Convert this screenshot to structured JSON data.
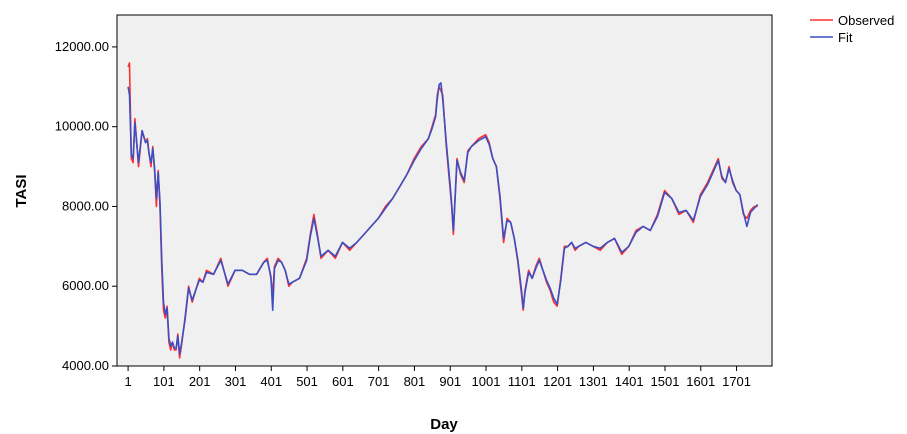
{
  "chart_data": {
    "type": "line",
    "xlabel": "Day",
    "ylabel": "TASI",
    "xlim": [
      -30,
      1800
    ],
    "ylim": [
      4000,
      12800
    ],
    "grid": false,
    "legend_position": "top-right (outside plot)",
    "x_ticks": [
      1,
      101,
      201,
      301,
      401,
      501,
      601,
      701,
      801,
      901,
      1001,
      1101,
      1201,
      1301,
      1401,
      1501,
      1601,
      1701
    ],
    "x_tick_labels": [
      "1",
      "101",
      "201",
      "301",
      "401",
      "501",
      "601",
      "701",
      "801",
      "901",
      "1001",
      "1101",
      "1201",
      "1301",
      "1401",
      "1501",
      "1601",
      "1701"
    ],
    "y_ticks": [
      4000,
      6000,
      8000,
      10000,
      12000
    ],
    "y_tick_labels": [
      "4000.00",
      "6000.00",
      "8000.00",
      "10000.00",
      "12000.00"
    ],
    "series": [
      {
        "name": "Observed",
        "color": "#ff3030",
        "x": [
          1,
          5,
          10,
          15,
          20,
          30,
          40,
          50,
          55,
          60,
          65,
          70,
          75,
          80,
          85,
          90,
          95,
          100,
          105,
          110,
          115,
          120,
          125,
          130,
          135,
          140,
          145,
          150,
          160,
          170,
          180,
          190,
          200,
          210,
          220,
          240,
          260,
          280,
          300,
          320,
          340,
          360,
          380,
          390,
          400,
          405,
          410,
          420,
          430,
          440,
          450,
          460,
          480,
          500,
          510,
          520,
          530,
          540,
          560,
          580,
          600,
          620,
          640,
          660,
          680,
          700,
          720,
          740,
          760,
          780,
          800,
          820,
          840,
          850,
          860,
          865,
          870,
          875,
          880,
          890,
          900,
          905,
          910,
          915,
          920,
          930,
          940,
          950,
          960,
          980,
          1000,
          1010,
          1020,
          1030,
          1040,
          1050,
          1060,
          1070,
          1080,
          1090,
          1100,
          1105,
          1110,
          1120,
          1130,
          1140,
          1150,
          1160,
          1170,
          1180,
          1190,
          1200,
          1210,
          1220,
          1230,
          1240,
          1250,
          1260,
          1280,
          1300,
          1320,
          1340,
          1360,
          1380,
          1400,
          1420,
          1440,
          1460,
          1480,
          1500,
          1520,
          1540,
          1560,
          1580,
          1600,
          1620,
          1640,
          1650,
          1660,
          1670,
          1680,
          1690,
          1700,
          1710,
          1720,
          1730,
          1740,
          1750,
          1760
        ],
        "y": [
          11500,
          11600,
          9200,
          9100,
          10200,
          9000,
          9900,
          9600,
          9700,
          9300,
          9000,
          9500,
          8900,
          8000,
          8900,
          8000,
          6500,
          5400,
          5200,
          5500,
          4600,
          4400,
          4600,
          4400,
          4400,
          4800,
          4200,
          4500,
          5200,
          6000,
          5600,
          5900,
          6200,
          6100,
          6400,
          6300,
          6700,
          6000,
          6400,
          6400,
          6300,
          6300,
          6600,
          6700,
          6200,
          5800,
          6500,
          6700,
          6600,
          6400,
          6000,
          6100,
          6200,
          6700,
          7300,
          7800,
          7300,
          6700,
          6900,
          6700,
          7100,
          6900,
          7100,
          7300,
          7500,
          7700,
          8000,
          8200,
          8500,
          8800,
          9200,
          9500,
          9700,
          10000,
          10300,
          10800,
          11000,
          10900,
          10800,
          9500,
          8500,
          8000,
          7300,
          8300,
          9200,
          8800,
          8600,
          9400,
          9500,
          9700,
          9800,
          9600,
          9200,
          9000,
          8200,
          7100,
          7700,
          7600,
          7200,
          6600,
          5800,
          5400,
          5900,
          6400,
          6200,
          6500,
          6700,
          6400,
          6100,
          5900,
          5600,
          5500,
          6200,
          7000,
          7000,
          7100,
          6900,
          7000,
          7100,
          7000,
          6900,
          7100,
          7200,
          6800,
          7000,
          7400,
          7500,
          7400,
          7800,
          8400,
          8200,
          7800,
          7900,
          7600,
          8300,
          8600,
          9000,
          9200,
          8700,
          8600,
          9000,
          8600,
          8400,
          8300,
          7800,
          7700,
          7900,
          8000,
          8000
        ]
      },
      {
        "name": "Fit",
        "color": "#3a4fc4",
        "x": [
          1,
          5,
          10,
          15,
          20,
          30,
          40,
          50,
          55,
          60,
          65,
          70,
          75,
          80,
          85,
          90,
          95,
          100,
          105,
          110,
          115,
          120,
          125,
          130,
          135,
          140,
          145,
          150,
          160,
          170,
          180,
          190,
          200,
          210,
          220,
          240,
          260,
          280,
          300,
          320,
          340,
          360,
          380,
          390,
          400,
          405,
          410,
          420,
          430,
          440,
          450,
          460,
          480,
          500,
          510,
          520,
          530,
          540,
          560,
          580,
          600,
          620,
          640,
          660,
          680,
          700,
          720,
          740,
          760,
          780,
          800,
          820,
          840,
          850,
          860,
          865,
          870,
          875,
          880,
          890,
          900,
          905,
          910,
          915,
          920,
          930,
          940,
          950,
          960,
          980,
          1000,
          1010,
          1020,
          1030,
          1040,
          1050,
          1060,
          1070,
          1080,
          1090,
          1100,
          1105,
          1110,
          1120,
          1130,
          1140,
          1150,
          1160,
          1170,
          1180,
          1190,
          1200,
          1210,
          1220,
          1230,
          1240,
          1250,
          1260,
          1280,
          1300,
          1320,
          1340,
          1360,
          1380,
          1400,
          1420,
          1440,
          1460,
          1480,
          1500,
          1520,
          1540,
          1560,
          1580,
          1600,
          1620,
          1640,
          1650,
          1660,
          1670,
          1680,
          1690,
          1700,
          1710,
          1720,
          1730,
          1740,
          1750,
          1760
        ],
        "y": [
          11000,
          10800,
          9300,
          9200,
          10100,
          9100,
          9900,
          9600,
          9650,
          9300,
          9100,
          9450,
          8950,
          8200,
          8850,
          8100,
          6700,
          5600,
          5300,
          5450,
          4700,
          4500,
          4600,
          4450,
          4450,
          4750,
          4300,
          4550,
          5150,
          5950,
          5650,
          5900,
          6150,
          6100,
          6350,
          6300,
          6650,
          6050,
          6400,
          6400,
          6300,
          6300,
          6600,
          6650,
          6250,
          5400,
          6450,
          6650,
          6600,
          6400,
          6050,
          6100,
          6200,
          6650,
          7250,
          7700,
          7250,
          6750,
          6900,
          6750,
          7100,
          6950,
          7100,
          7300,
          7500,
          7700,
          7950,
          8200,
          8500,
          8800,
          9150,
          9450,
          9700,
          9950,
          10250,
          10700,
          11050,
          11100,
          10700,
          9600,
          8600,
          8050,
          7400,
          8250,
          9150,
          8850,
          8650,
          9350,
          9500,
          9650,
          9750,
          9550,
          9200,
          9000,
          8250,
          7200,
          7650,
          7600,
          7200,
          6650,
          5900,
          5450,
          5850,
          6350,
          6200,
          6450,
          6650,
          6400,
          6150,
          5950,
          5700,
          5550,
          6150,
          6950,
          7000,
          7100,
          6950,
          7000,
          7100,
          7000,
          6950,
          7100,
          7200,
          6850,
          7000,
          7350,
          7500,
          7400,
          7750,
          8350,
          8200,
          7850,
          7900,
          7650,
          8250,
          8550,
          8950,
          9150,
          8750,
          8600,
          8950,
          8650,
          8400,
          8300,
          7850,
          7500,
          7850,
          7950,
          8050
        ]
      }
    ]
  }
}
